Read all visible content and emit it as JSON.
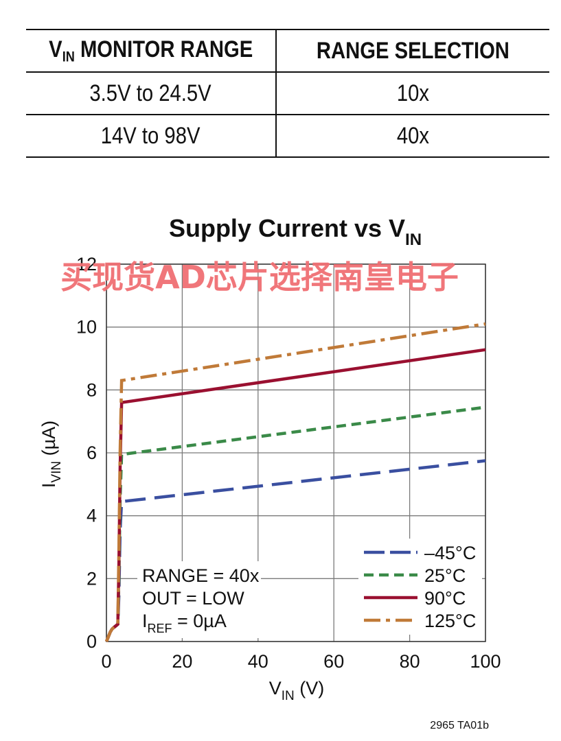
{
  "table": {
    "headers": [
      {
        "main": "V",
        "sub": "IN",
        "rest": " MONITOR RANGE"
      },
      {
        "main": "RANGE SELECTION",
        "sub": "",
        "rest": ""
      }
    ],
    "rows": [
      {
        "range": "3.5V to 24.5V",
        "selection": "10x"
      },
      {
        "range": "14V to 98V",
        "selection": "40x"
      }
    ]
  },
  "watermark": "买现货AD芯片选择南皇电子",
  "figure_code": "2965 TA01b",
  "chart_data": {
    "type": "line",
    "title": {
      "main": "Supply Current vs V",
      "sub": "IN"
    },
    "xlabel": {
      "main": "V",
      "sub": "IN",
      "rest": " (V)"
    },
    "ylabel": {
      "main": "I",
      "sub": "VIN",
      "rest": " (µA)"
    },
    "xlim": [
      0,
      100
    ],
    "ylim": [
      0,
      12
    ],
    "xticks": [
      0,
      20,
      40,
      60,
      80,
      100
    ],
    "yticks": [
      0,
      2,
      4,
      6,
      8,
      10,
      12
    ],
    "grid": true,
    "legend_position": "bottom-right",
    "annotations": [
      {
        "main": "RANGE = 40x",
        "sub": "",
        "rest": ""
      },
      {
        "main": "OUT = LOW",
        "sub": "",
        "rest": ""
      },
      {
        "main": "I",
        "sub": "REF",
        "rest": " = 0µA"
      }
    ],
    "series": [
      {
        "name": "–45°C",
        "color": "#3a4fa0",
        "dash": "long-dash",
        "x": [
          0,
          0.5,
          1,
          1.5,
          2,
          2.5,
          3,
          3.3,
          3.6,
          4,
          100
        ],
        "y": [
          0,
          0.15,
          0.3,
          0.4,
          0.45,
          0.5,
          0.55,
          1.5,
          3.5,
          4.45,
          5.75
        ]
      },
      {
        "name": "25°C",
        "color": "#3a8a48",
        "dash": "short-dash",
        "x": [
          0,
          0.5,
          1,
          1.5,
          2,
          2.5,
          3,
          3.3,
          3.6,
          4,
          100
        ],
        "y": [
          0,
          0.15,
          0.3,
          0.4,
          0.45,
          0.5,
          0.55,
          2.0,
          4.5,
          5.95,
          7.45
        ]
      },
      {
        "name": "90°C",
        "color": "#9a1030",
        "dash": "solid",
        "x": [
          0,
          0.5,
          1,
          1.5,
          2,
          2.5,
          3,
          3.3,
          3.6,
          4,
          100
        ],
        "y": [
          0,
          0.15,
          0.3,
          0.4,
          0.45,
          0.5,
          0.55,
          2.5,
          5.5,
          7.6,
          9.28
        ]
      },
      {
        "name": "125°C",
        "color": "#c07a38",
        "dash": "dash-dot",
        "x": [
          0,
          0.5,
          1,
          1.5,
          2,
          2.5,
          3,
          3.3,
          3.6,
          4,
          100
        ],
        "y": [
          0,
          0.15,
          0.3,
          0.4,
          0.45,
          0.5,
          0.55,
          3.0,
          6.0,
          8.3,
          10.1
        ]
      }
    ]
  }
}
